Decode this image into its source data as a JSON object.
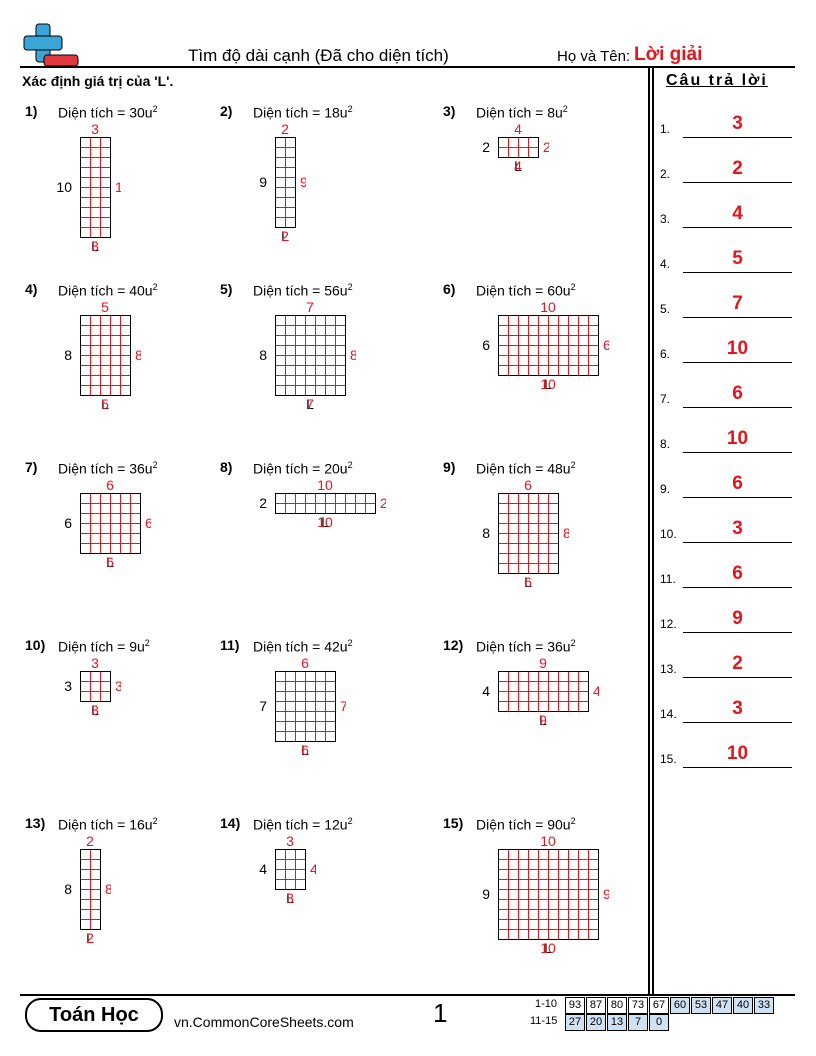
{
  "header": {
    "title": "Tìm độ dài cạnh (Đã cho diện tích)",
    "name_label": "Họ và Tên:",
    "name_value": "Lời giải"
  },
  "instructions": "Xác định giá trị của 'L'.",
  "unknown": "L",
  "problems": [
    {
      "label": "1)",
      "area": "Diện tích = 30u",
      "power": "2",
      "width": 3,
      "height": 10
    },
    {
      "label": "2)",
      "area": "Diện tích = 18u",
      "power": "2",
      "width": 2,
      "height": 9
    },
    {
      "label": "3)",
      "area": "Diện tích = 8u",
      "power": "2",
      "width": 4,
      "height": 2
    },
    {
      "label": "4)",
      "area": "Diện tích = 40u",
      "power": "2",
      "width": 5,
      "height": 8
    },
    {
      "label": "5)",
      "area": "Diện tích = 56u",
      "power": "2",
      "width": 7,
      "height": 8
    },
    {
      "label": "6)",
      "area": "Diện tích = 60u",
      "power": "2",
      "width": 10,
      "height": 6
    },
    {
      "label": "7)",
      "area": "Diện tích = 36u",
      "power": "2",
      "width": 6,
      "height": 6
    },
    {
      "label": "8)",
      "area": "Diện tích = 20u",
      "power": "2",
      "width": 10,
      "height": 2
    },
    {
      "label": "9)",
      "area": "Diện tích = 48u",
      "power": "2",
      "width": 6,
      "height": 8
    },
    {
      "label": "10)",
      "area": "Diện tích = 9u",
      "power": "2",
      "width": 3,
      "height": 3
    },
    {
      "label": "11)",
      "area": "Diện tích = 42u",
      "power": "2",
      "width": 6,
      "height": 7
    },
    {
      "label": "12)",
      "area": "Diện tích = 36u",
      "power": "2",
      "width": 9,
      "height": 4
    },
    {
      "label": "13)",
      "area": "Diện tích = 16u",
      "power": "2",
      "width": 2,
      "height": 8
    },
    {
      "label": "14)",
      "area": "Diện tích = 12u",
      "power": "2",
      "width": 3,
      "height": 4
    },
    {
      "label": "15)",
      "area": "Diện tích = 90u",
      "power": "2",
      "width": 10,
      "height": 9
    }
  ],
  "answers": {
    "title": "Câu trả lời",
    "items": [
      {
        "number": "1.",
        "value": "3"
      },
      {
        "number": "2.",
        "value": "2"
      },
      {
        "number": "3.",
        "value": "4"
      },
      {
        "number": "4.",
        "value": "5"
      },
      {
        "number": "5.",
        "value": "7"
      },
      {
        "number": "6.",
        "value": "10"
      },
      {
        "number": "7.",
        "value": "6"
      },
      {
        "number": "8.",
        "value": "10"
      },
      {
        "number": "9.",
        "value": "6"
      },
      {
        "number": "10.",
        "value": "3"
      },
      {
        "number": "11.",
        "value": "6"
      },
      {
        "number": "12.",
        "value": "9"
      },
      {
        "number": "13.",
        "value": "2"
      },
      {
        "number": "14.",
        "value": "3"
      },
      {
        "number": "15.",
        "value": "10"
      }
    ]
  },
  "footer": {
    "brand": "Toán Học",
    "url": "vn.CommonCoreSheets.com",
    "page": "1",
    "scores": [
      {
        "range": "1-10",
        "values": [
          93,
          87,
          80,
          73,
          67,
          60,
          53,
          47,
          40,
          33
        ]
      },
      {
        "range": "11-15",
        "values": [
          27,
          20,
          13,
          7,
          0
        ]
      }
    ]
  }
}
